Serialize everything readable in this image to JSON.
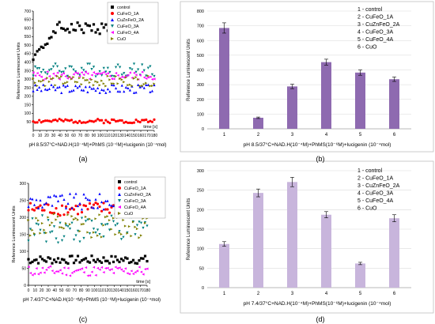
{
  "panel_labels": [
    "(a)",
    "(b)",
    "(c)",
    "(d)"
  ],
  "colors": {
    "control": "#000000",
    "CuFeO_1A": "#ff0000",
    "CuZnFeO_2A": "#0000ff",
    "CuFeO_3A": "#008080",
    "CuFeO_4A": "#ff00ff",
    "CuO": "#808000",
    "bar_b": "#8e6ab0",
    "bar_d": "#c8b5dc",
    "grid": "#d9d9d9",
    "frame": "#bfbfbf"
  },
  "chart_data": [
    {
      "id": "a",
      "type": "scatter",
      "xlabel": "time [s]",
      "ylabel": "Reference Luminescent Units",
      "caption": "pH 8.5/37°C+NAD.H(10⁻⁴M)+PhMS (10⁻⁶M)+lucigenin (10⁻⁴mol)",
      "xlim": [
        0,
        180
      ],
      "ylim": [
        0,
        700
      ],
      "xticks": [
        0,
        10,
        20,
        30,
        40,
        50,
        60,
        70,
        80,
        90,
        100,
        110,
        120,
        130,
        140,
        150,
        160,
        170,
        180
      ],
      "yticks": [
        50,
        100,
        150,
        200,
        250,
        300,
        350,
        400,
        450,
        500,
        550,
        600,
        650,
        700
      ],
      "legend_position": "top-right",
      "series": [
        {
          "name": "control",
          "color_key": "control",
          "marker": "square",
          "base": 600,
          "amp": 35,
          "start": 420,
          "seed": 1
        },
        {
          "name": "CuFeO_1A",
          "color_key": "CuFeO_1A",
          "marker": "circle",
          "base": 55,
          "amp": 12,
          "seed": 2
        },
        {
          "name": "CuZnFeO_2A",
          "color_key": "CuZnFeO_2A",
          "marker": "triangle-up",
          "base": 245,
          "amp": 25,
          "seed": 3
        },
        {
          "name": "CuFeO_3A",
          "color_key": "CuFeO_3A",
          "marker": "triangle-down",
          "base": 355,
          "amp": 40,
          "seed": 4
        },
        {
          "name": "CuFeO_4A",
          "color_key": "CuFeO_4A",
          "marker": "triangle-left",
          "base": 320,
          "amp": 25,
          "seed": 5
        },
        {
          "name": "CuO",
          "color_key": "CuO",
          "marker": "triangle-right",
          "base": 290,
          "amp": 30,
          "seed": 6
        }
      ]
    },
    {
      "id": "b",
      "type": "bar",
      "ylabel": "Reference Luminescent Units",
      "caption": "pH 8.5/37°C+NAD.H(10⁻⁴M)+PhMS(10⁻⁶M)+lucigenin (10⁻⁴mol)",
      "categories": [
        "1",
        "2",
        "3",
        "4",
        "5",
        "6"
      ],
      "values": [
        685,
        75,
        288,
        453,
        382,
        337
      ],
      "errors": [
        35,
        5,
        15,
        20,
        18,
        15
      ],
      "ylim": [
        0,
        800
      ],
      "yticks": [
        0,
        100,
        200,
        300,
        400,
        500,
        600,
        700,
        800
      ],
      "legend_lines": [
        "1 - control",
        "2 - CuFeO_1A",
        "3 - CuZnFeO_2A",
        "4 - CuFeO_3A",
        "5 - CuFeO_4A",
        "6 - CuO"
      ],
      "bar_color_key": "bar_b"
    },
    {
      "id": "c",
      "type": "scatter",
      "xlabel": "time [s]",
      "ylabel": "Reference Luminescent Units",
      "caption": "pH 7.4/37°C+NAD.H(10⁻⁴M)+PhMS (10⁻⁶M)+lucigenin (10⁻⁴mol)",
      "xlim": [
        0,
        180
      ],
      "ylim": [
        0,
        300
      ],
      "xticks": [
        0,
        10,
        20,
        30,
        40,
        50,
        60,
        70,
        80,
        90,
        100,
        110,
        120,
        130,
        140,
        150,
        160,
        170,
        180
      ],
      "yticks": [
        0,
        50,
        100,
        150,
        200,
        250,
        300
      ],
      "legend_position": "top-right",
      "series": [
        {
          "name": "control",
          "color_key": "control",
          "marker": "square",
          "base": 75,
          "amp": 12,
          "seed": 7
        },
        {
          "name": "CuFeO_1A",
          "color_key": "CuFeO_1A",
          "marker": "circle",
          "base": 225,
          "amp": 20,
          "seed": 8
        },
        {
          "name": "CuZnFeO_2A",
          "color_key": "CuZnFeO_2A",
          "marker": "triangle-up",
          "base": 245,
          "amp": 25,
          "seed": 9
        },
        {
          "name": "CuFeO_3A",
          "color_key": "CuFeO_3A",
          "marker": "triangle-down",
          "base": 165,
          "amp": 40,
          "seed": 10
        },
        {
          "name": "CuFeO_4A",
          "color_key": "CuFeO_4A",
          "marker": "triangle-left",
          "base": 42,
          "amp": 15,
          "seed": 11
        },
        {
          "name": "CuO",
          "color_key": "CuO",
          "marker": "triangle-right",
          "base": 175,
          "amp": 35,
          "seed": 12
        }
      ]
    },
    {
      "id": "d",
      "type": "bar",
      "ylabel": "Reference Luminescent Units",
      "caption": "pH 7.4/37°C+NAD.H(10⁻⁴M)+PhMS(10⁻⁶M)+lucigenin (10⁻⁴mol)",
      "categories": [
        "1",
        "2",
        "3",
        "4",
        "5",
        "6"
      ],
      "values": [
        112,
        243,
        271,
        187,
        62,
        178
      ],
      "errors": [
        6,
        10,
        12,
        8,
        3,
        9
      ],
      "ylim": [
        0,
        300
      ],
      "yticks": [
        0,
        50,
        100,
        150,
        200,
        250,
        300
      ],
      "legend_lines": [
        "1 - control",
        "2 - CuFeO_1A",
        "3 - CuZnFeO_2A",
        "4 - CuFeO_3A",
        "5 - CuFeO_4A",
        "6 - CuO"
      ],
      "bar_color_key": "bar_d"
    }
  ]
}
